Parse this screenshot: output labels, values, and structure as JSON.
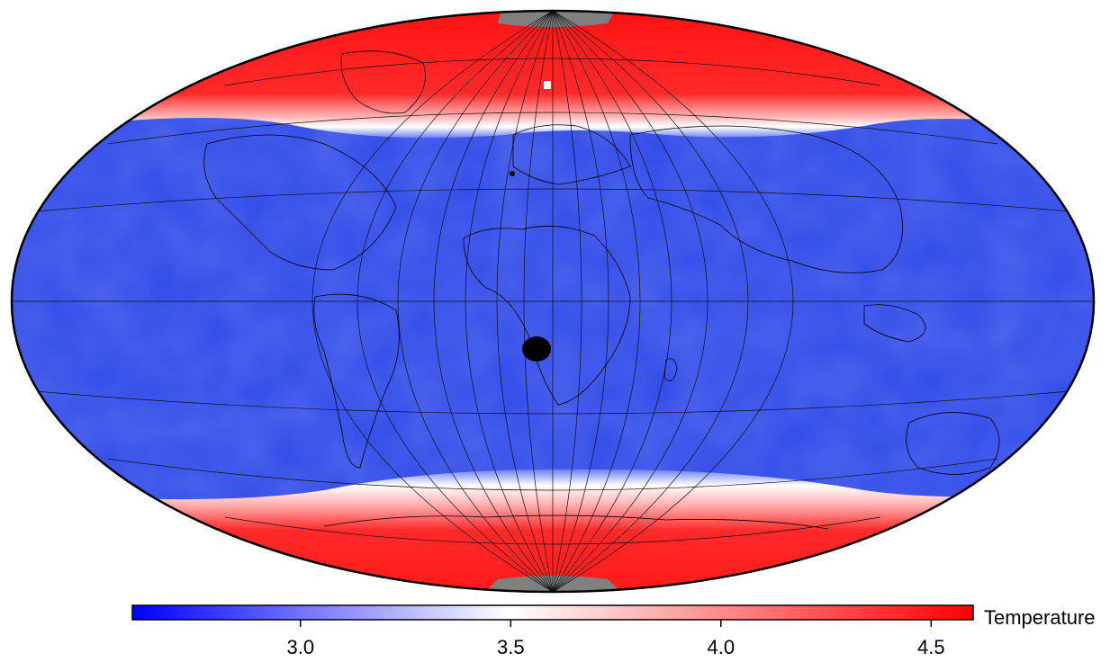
{
  "colorbar": {
    "label": "Temperature",
    "min": 2.6,
    "max": 4.6,
    "ticks": [
      {
        "value": 3.0,
        "label": "3.0"
      },
      {
        "value": 3.5,
        "label": "3.5"
      },
      {
        "value": 4.0,
        "label": "4.0"
      },
      {
        "value": 4.5,
        "label": "4.5"
      }
    ],
    "colors": {
      "low": "#0000ff",
      "mid": "#ffffff",
      "high": "#ff0000"
    }
  },
  "map": {
    "projection": "Hammer-Aitoff (elliptical)",
    "background_color": "#2f4ae8",
    "polar_cap_color": "#ff1a1a",
    "pole_cap_color": "#808080",
    "graticule": true,
    "coastlines": true
  }
}
